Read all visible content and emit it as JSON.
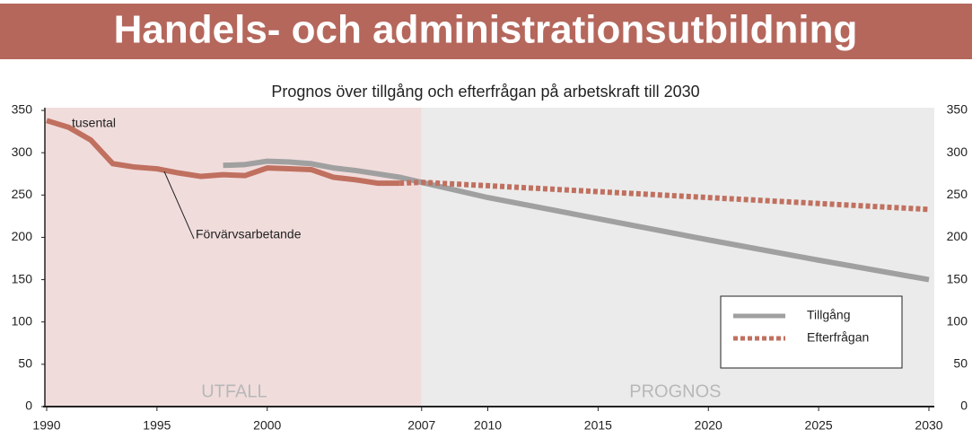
{
  "header": {
    "title": "Handels- och administrationsutbildning"
  },
  "chart_data": {
    "type": "line",
    "title": "Prognos över tillgång och efterfrågan på arbetskraft till 2030",
    "annotations": {
      "unit": "tusental"
    },
    "regions": [
      {
        "label": "UTFALL",
        "from": 1990,
        "to": 2007,
        "color": "#f1dcdc"
      },
      {
        "label": "PROGNOS",
        "from": 2007,
        "to": 2030,
        "color": "#ebebeb"
      }
    ],
    "series": [
      {
        "name": "Förvärvsarbetande",
        "color": "#c0705f",
        "style": "solid",
        "legend": false,
        "x": [
          1990,
          1991,
          1992,
          1993,
          1994,
          1995,
          1996,
          1997,
          1998,
          1999,
          2000,
          2001,
          2002,
          2003,
          2004,
          2005,
          2006
        ],
        "values": [
          338,
          330,
          315,
          287,
          283,
          281,
          276,
          272,
          274,
          273,
          282,
          281,
          280,
          271,
          268,
          264,
          264
        ]
      },
      {
        "name": "Tillgång",
        "color": "#a0a0a0",
        "style": "solid",
        "legend": true,
        "x": [
          1998,
          1999,
          2000,
          2001,
          2002,
          2003,
          2004,
          2005,
          2006,
          2007,
          2010,
          2015,
          2020,
          2025,
          2030
        ],
        "values": [
          285,
          286,
          290,
          289,
          287,
          282,
          279,
          275,
          271,
          265,
          247,
          222,
          197,
          173,
          150
        ]
      },
      {
        "name": "Efterfrågan",
        "color": "#c0705f",
        "style": "dotted",
        "legend": true,
        "x": [
          2006,
          2007,
          2010,
          2015,
          2020,
          2025,
          2030
        ],
        "values": [
          264,
          265,
          261,
          254,
          247,
          240,
          233
        ]
      }
    ],
    "xlim": [
      1990,
      2030
    ],
    "xticks": [
      1990,
      1995,
      2000,
      2007,
      2010,
      2015,
      2020,
      2025,
      2030
    ],
    "ylim": [
      0,
      350
    ],
    "yticks": [
      0,
      50,
      100,
      150,
      200,
      250,
      300,
      350
    ],
    "legend": "lower right"
  }
}
